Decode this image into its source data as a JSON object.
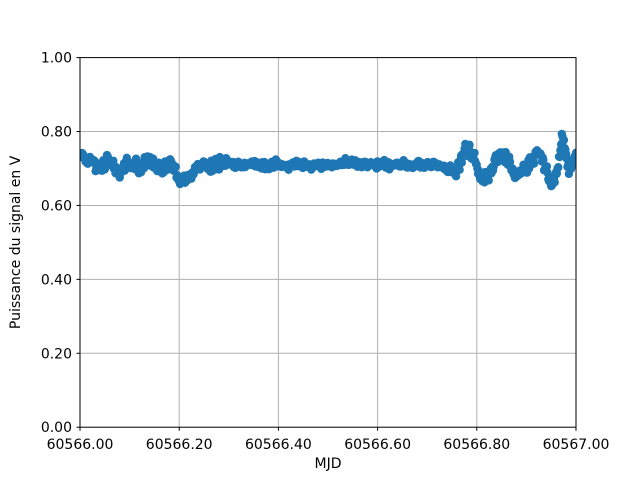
{
  "figure": {
    "background": "#ffffff"
  },
  "chart_data": {
    "type": "scatter",
    "title": "",
    "xlabel": "MJD",
    "ylabel": "Puissance du signal en V",
    "xlim": [
      60566.0,
      60567.0
    ],
    "ylim": [
      0.0,
      1.0
    ],
    "xticks": [
      60566.0,
      60566.2,
      60566.4,
      60566.6,
      60566.8,
      60567.0
    ],
    "xtick_labels": [
      "60566.00",
      "60566.20",
      "60566.40",
      "60566.60",
      "60566.80",
      "60567.00"
    ],
    "yticks": [
      0.0,
      0.2,
      0.4,
      0.6,
      0.8,
      1.0
    ],
    "ytick_labels": [
      "0.00",
      "0.20",
      "0.40",
      "0.60",
      "0.80",
      "1.00"
    ],
    "grid": true,
    "legend": null,
    "grid_color": "#b0b0b0",
    "spine_color": "#000000",
    "marker_color": "#1f77b4",
    "marker_radius_px": 4.2,
    "n_points": 700,
    "seed": 987654321,
    "noise_segments": [
      [
        60566.0,
        60566.3,
        0.008
      ],
      [
        60566.3,
        60566.74,
        0.005
      ],
      [
        60566.74,
        60567.0,
        0.009
      ]
    ],
    "trend": [
      [
        60566.0,
        0.735
      ],
      [
        60566.012,
        0.728
      ],
      [
        60566.025,
        0.72
      ],
      [
        60566.04,
        0.703
      ],
      [
        60566.052,
        0.716
      ],
      [
        60566.065,
        0.71
      ],
      [
        60566.08,
        0.688
      ],
      [
        60566.093,
        0.712
      ],
      [
        60566.108,
        0.713
      ],
      [
        60566.12,
        0.698
      ],
      [
        60566.14,
        0.73
      ],
      [
        60566.155,
        0.705
      ],
      [
        60566.168,
        0.694
      ],
      [
        60566.183,
        0.724
      ],
      [
        60566.196,
        0.68
      ],
      [
        60566.21,
        0.667
      ],
      [
        60566.225,
        0.685
      ],
      [
        60566.238,
        0.705
      ],
      [
        60566.25,
        0.712
      ],
      [
        60566.262,
        0.696
      ],
      [
        60566.278,
        0.71
      ],
      [
        60566.3,
        0.715
      ],
      [
        60566.32,
        0.707
      ],
      [
        60566.345,
        0.712
      ],
      [
        60566.37,
        0.706
      ],
      [
        60566.395,
        0.71
      ],
      [
        60566.42,
        0.709
      ],
      [
        60566.445,
        0.712
      ],
      [
        60566.47,
        0.709
      ],
      [
        60566.495,
        0.711
      ],
      [
        60566.52,
        0.711
      ],
      [
        60566.545,
        0.717
      ],
      [
        60566.57,
        0.711
      ],
      [
        60566.595,
        0.71
      ],
      [
        60566.62,
        0.711
      ],
      [
        60566.645,
        0.708
      ],
      [
        60566.67,
        0.71
      ],
      [
        60566.695,
        0.708
      ],
      [
        60566.72,
        0.707
      ],
      [
        60566.745,
        0.698
      ],
      [
        60566.758,
        0.682
      ],
      [
        60566.772,
        0.74
      ],
      [
        60566.785,
        0.752
      ],
      [
        60566.798,
        0.71
      ],
      [
        60566.81,
        0.666
      ],
      [
        60566.822,
        0.674
      ],
      [
        60566.835,
        0.718
      ],
      [
        60566.85,
        0.742
      ],
      [
        60566.865,
        0.714
      ],
      [
        60566.88,
        0.678
      ],
      [
        60566.895,
        0.697
      ],
      [
        60566.91,
        0.722
      ],
      [
        60566.925,
        0.742
      ],
      [
        60566.94,
        0.7
      ],
      [
        60566.952,
        0.655
      ],
      [
        60566.963,
        0.7
      ],
      [
        60566.972,
        0.79
      ],
      [
        60566.979,
        0.748
      ],
      [
        60566.986,
        0.69
      ],
      [
        60566.993,
        0.716
      ],
      [
        60567.0,
        0.732
      ]
    ]
  }
}
